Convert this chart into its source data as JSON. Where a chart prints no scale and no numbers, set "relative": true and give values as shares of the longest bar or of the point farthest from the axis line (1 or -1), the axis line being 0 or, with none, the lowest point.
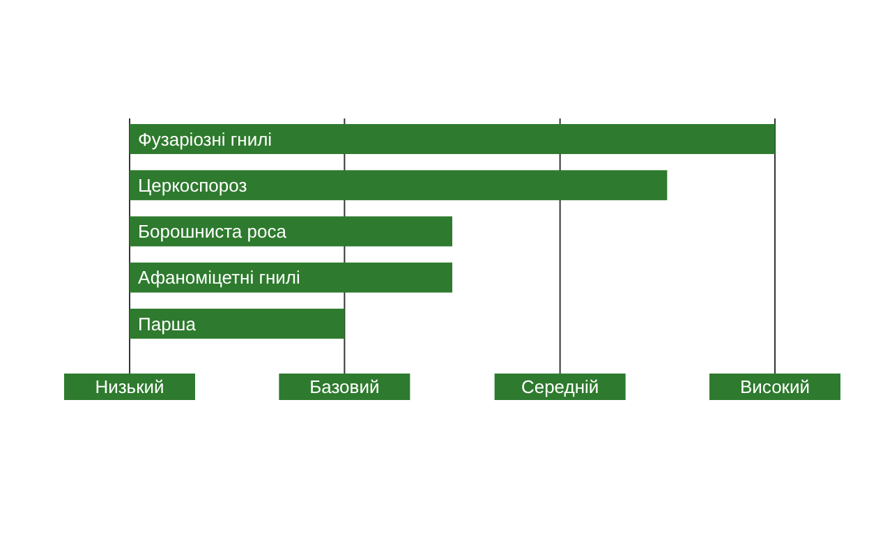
{
  "chart_data": {
    "type": "bar",
    "orientation": "horizontal",
    "relative": true,
    "categories": [
      "Фузаріозні гнилі",
      "Церкоспороз",
      "Борошниста роса",
      "Афаноміцетні гнилі",
      "Парша"
    ],
    "values": [
      1,
      0.833,
      0.5,
      0.5,
      0.333
    ],
    "color": "#2e7a2e",
    "ref_lines": [
      {
        "axis": "x",
        "value": 0,
        "label": "Низький",
        "color": "#333333"
      },
      {
        "axis": "x",
        "value": 0.333,
        "label": "Базовий",
        "color": "#333333"
      },
      {
        "axis": "x",
        "value": 0.667,
        "label": "Середній",
        "color": "#333333"
      },
      {
        "axis": "x",
        "value": 1,
        "label": "Високий",
        "color": "#333333"
      }
    ]
  }
}
